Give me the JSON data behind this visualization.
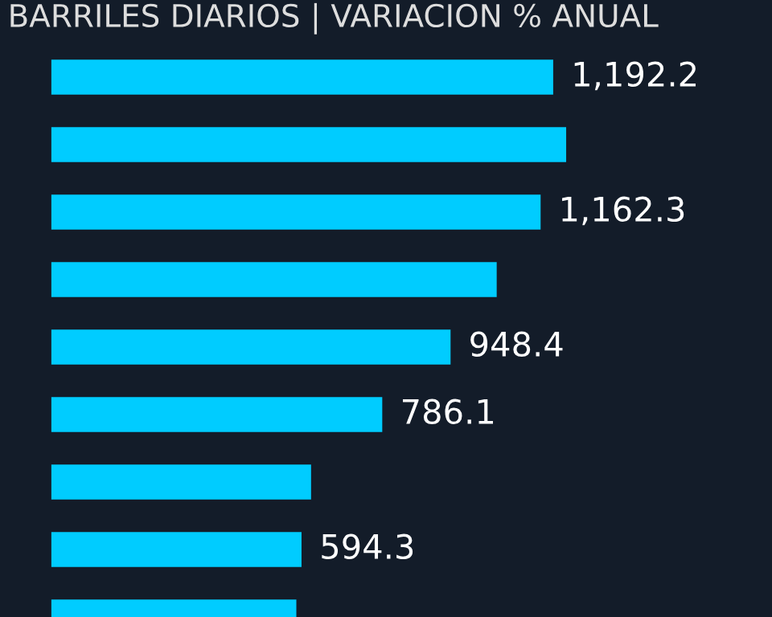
{
  "chart_data": {
    "type": "bar",
    "orientation": "horizontal",
    "title": "BARRILES DIARIOS | VARIACION % ANUAL",
    "categories": [
      null,
      null,
      null,
      null,
      null,
      null,
      null,
      null,
      null
    ],
    "values": [
      1192.2,
      1223,
      1162.3,
      1058,
      948.4,
      786.1,
      617,
      594.3,
      582
    ],
    "value_labels": [
      "1,192.2",
      null,
      "1,162.3",
      null,
      "948.4",
      "786.1",
      null,
      "594.3",
      null
    ],
    "color": "#00ccff",
    "xlim": [
      -122,
      1712
    ],
    "grid": false,
    "legend": false
  }
}
